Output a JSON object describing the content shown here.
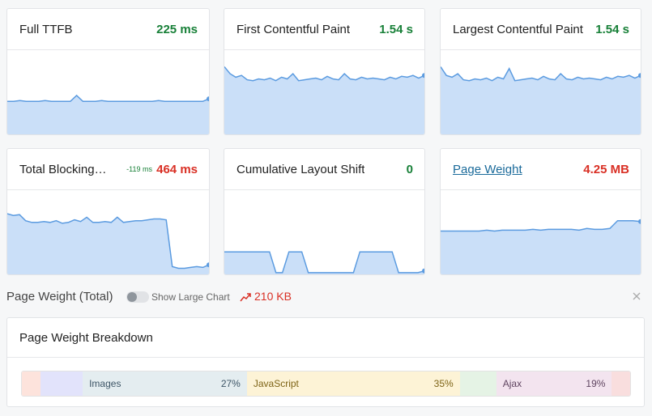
{
  "cards": [
    {
      "title": "Full TTFB",
      "value": "225 ms",
      "value_color": "#188038",
      "ylim": [
        0,
        100
      ],
      "sparkline": [
        38,
        38,
        39,
        38,
        38,
        38,
        39,
        38,
        38,
        38,
        38,
        45,
        38,
        38,
        38,
        39,
        38,
        38,
        38,
        38,
        38,
        38,
        38,
        38,
        39,
        38,
        38,
        38,
        38,
        38,
        38,
        38,
        41
      ]
    },
    {
      "title": "First Contentful Paint",
      "value": "1.54 s",
      "value_color": "#188038",
      "ylim": [
        0,
        100
      ],
      "sparkline": [
        78,
        70,
        66,
        68,
        63,
        62,
        64,
        63,
        65,
        62,
        66,
        64,
        70,
        62,
        63,
        64,
        65,
        63,
        67,
        64,
        63,
        70,
        64,
        63,
        66,
        64,
        65,
        64,
        63,
        66,
        64,
        67,
        66,
        68,
        65,
        68
      ]
    },
    {
      "title": "Largest Contentful Paint",
      "value": "1.54 s",
      "value_color": "#188038",
      "ylim": [
        0,
        100
      ],
      "sparkline": [
        78,
        68,
        66,
        70,
        63,
        62,
        64,
        63,
        65,
        62,
        66,
        64,
        76,
        62,
        63,
        64,
        65,
        63,
        67,
        64,
        63,
        70,
        64,
        63,
        66,
        64,
        65,
        64,
        63,
        66,
        64,
        67,
        66,
        68,
        65,
        68
      ]
    },
    {
      "title": "Total Blocking…",
      "delta": "-119 ms",
      "delta_color": "#188038",
      "value": "464 ms",
      "value_color": "#d93025",
      "ylim": [
        0,
        100
      ],
      "sparkline": [
        70,
        68,
        69,
        62,
        60,
        60,
        61,
        60,
        62,
        59,
        60,
        63,
        61,
        66,
        60,
        60,
        61,
        60,
        66,
        60,
        61,
        62,
        62,
        63,
        64,
        64,
        63,
        9,
        7,
        7,
        8,
        9,
        8,
        11
      ]
    },
    {
      "title": "Cumulative Layout Shift",
      "value": "0",
      "value_color": "#188038",
      "ylim": [
        0,
        100
      ],
      "sparkline": [
        26,
        26,
        26,
        26,
        26,
        26,
        26,
        26,
        2,
        2,
        26,
        26,
        26,
        2,
        2,
        2,
        2,
        2,
        2,
        2,
        2,
        26,
        26,
        26,
        26,
        26,
        26,
        2,
        2,
        2,
        2,
        4
      ]
    },
    {
      "title": "Page Weight",
      "title_link": true,
      "value": "4.25 MB",
      "value_color": "#d93025",
      "ylim": [
        0,
        100
      ],
      "sparkline": [
        50,
        50,
        50,
        50,
        50,
        50,
        51,
        50,
        51,
        51,
        51,
        51,
        52,
        51,
        52,
        52,
        52,
        52,
        51,
        53,
        52,
        52,
        53,
        62,
        62,
        62,
        61
      ]
    }
  ],
  "page_weight_total": {
    "title": "Page Weight (Total)",
    "toggle_label": "Show Large Chart",
    "change": "210 KB"
  },
  "breakdown": {
    "title": "Page Weight Breakdown",
    "segments": [
      {
        "name": null,
        "value": 3,
        "color": "#fde3dc"
      },
      {
        "name": null,
        "value": 7,
        "color": "#e2e3fb"
      },
      {
        "name": "Images",
        "value": 27,
        "value_label": "27%",
        "color": "#e4edf0",
        "text_color": "#3d5566"
      },
      {
        "name": "JavaScript",
        "value": 35,
        "value_label": "35%",
        "color": "#fdf3d6",
        "text_color": "#7d6316"
      },
      {
        "name": null,
        "value": 6,
        "color": "#e5f3e5"
      },
      {
        "name": "Ajax",
        "value": 19,
        "value_label": "19%",
        "color": "#f3e4ef",
        "text_color": "#5f4460"
      },
      {
        "name": null,
        "value": 3,
        "color": "#f9dede"
      }
    ]
  }
}
